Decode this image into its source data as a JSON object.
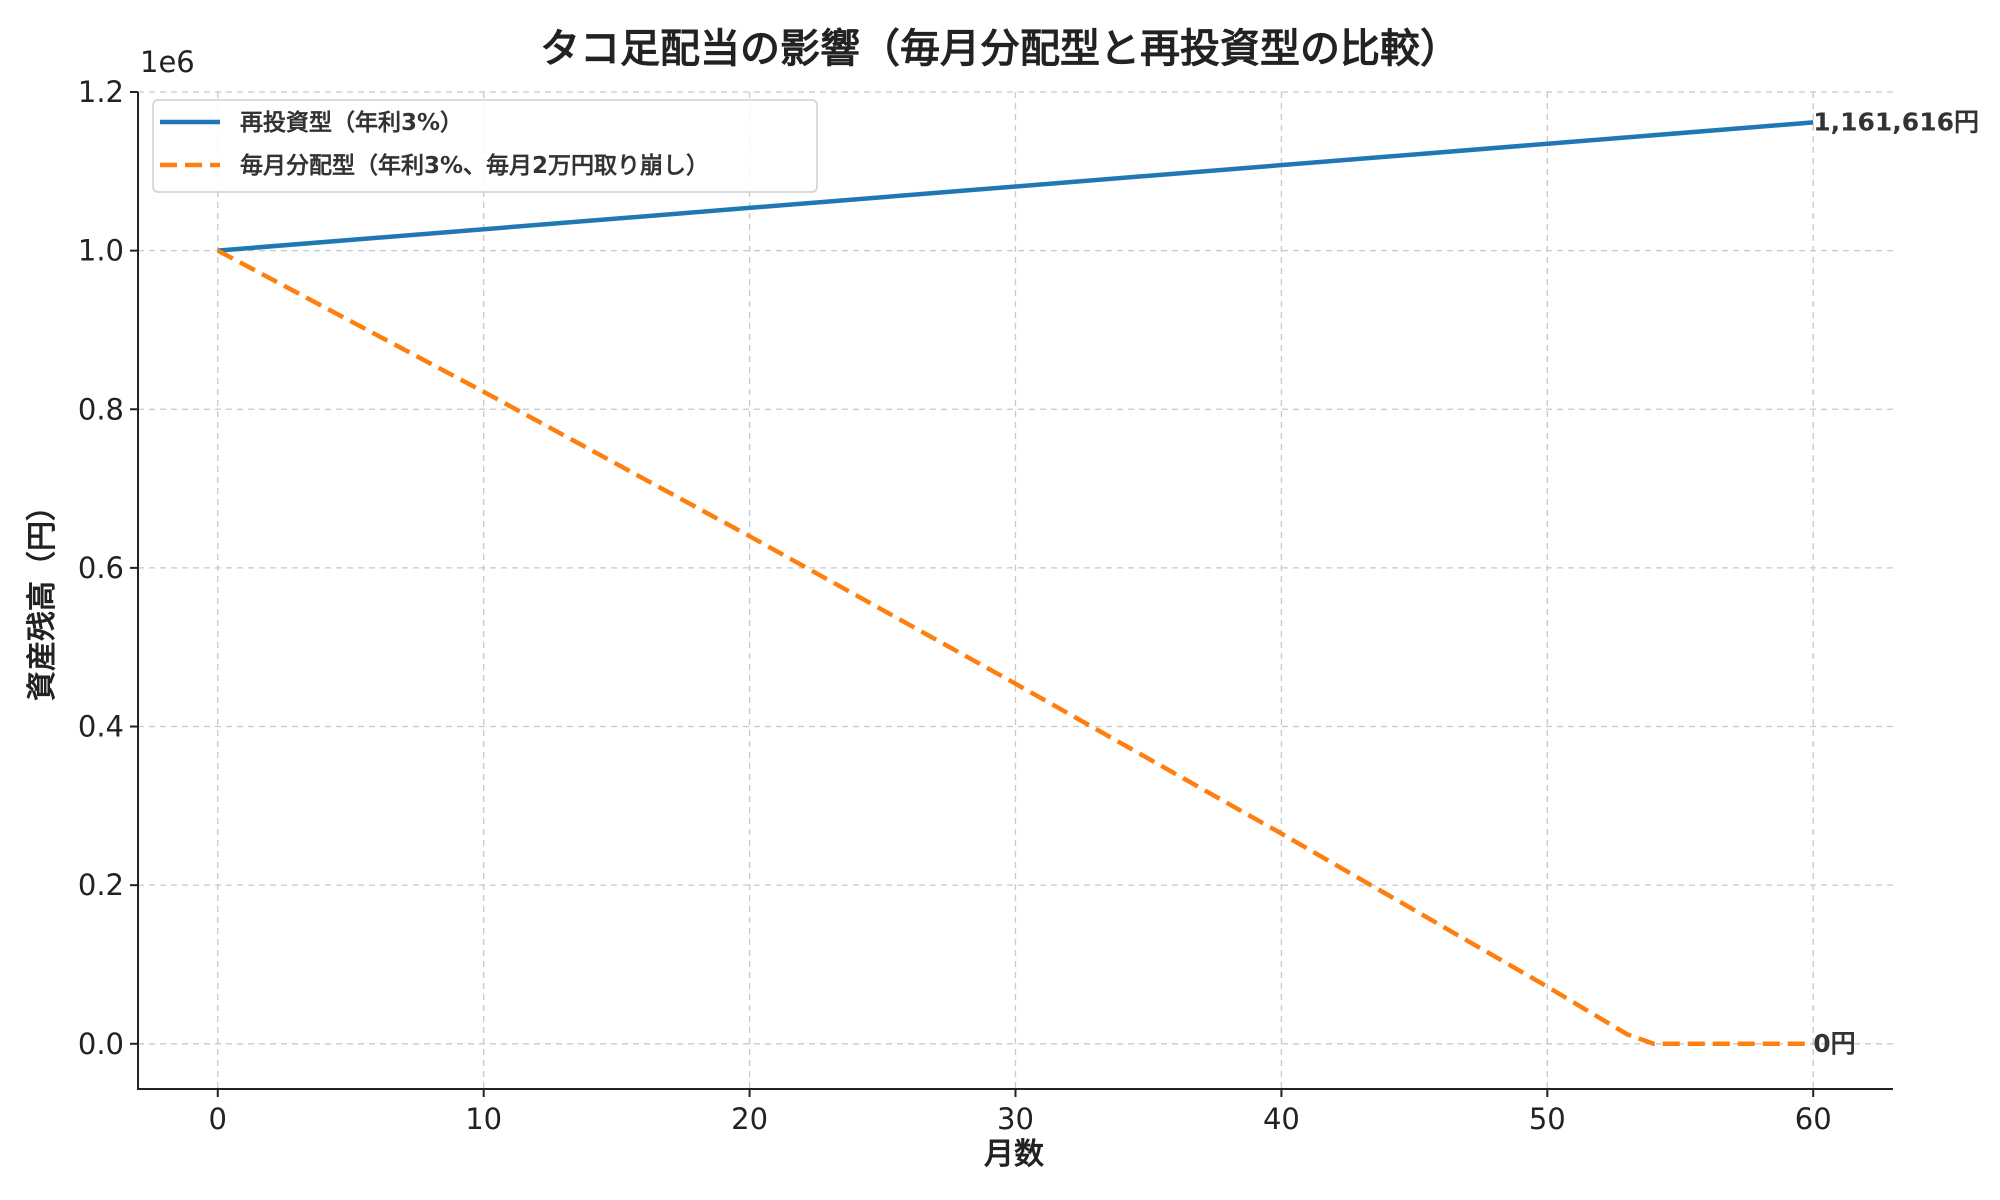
{
  "chart_data": {
    "type": "line",
    "title": "タコ足配当の影響（毎月分配型と再投資型の比較）",
    "xlabel": "月数",
    "ylabel": "資産残高（円）",
    "y_offset_label": "1e6",
    "xlim": [
      -3,
      63
    ],
    "ylim": [
      -57000,
      1200000
    ],
    "x_ticks": [
      0,
      10,
      20,
      30,
      40,
      50,
      60
    ],
    "x_tick_labels": [
      "0",
      "10",
      "20",
      "30",
      "40",
      "50",
      "60"
    ],
    "y_ticks": [
      0,
      200000,
      400000,
      600000,
      800000,
      1000000,
      1200000
    ],
    "y_tick_labels": [
      "0.0",
      "0.2",
      "0.4",
      "0.6",
      "0.8",
      "1.0",
      "1.2"
    ],
    "grid": true,
    "legend_position": "top-left",
    "series": [
      {
        "name": "再投資型（年利3%）",
        "color": "#1f77b4",
        "style": "solid",
        "x": [
          0,
          60
        ],
        "y": [
          1000000,
          1161616
        ],
        "end_label": "1,161,616円"
      },
      {
        "name": "毎月分配型（年利3%、毎月2万円取り崩し）",
        "color": "#ff7f0e",
        "style": "dashed",
        "x": [
          0,
          10,
          20,
          30,
          40,
          50,
          53,
          54,
          60
        ],
        "y": [
          1000000,
          822000,
          640000,
          454000,
          265000,
          72000,
          12000,
          0,
          0
        ],
        "end_label": "0円"
      }
    ]
  }
}
